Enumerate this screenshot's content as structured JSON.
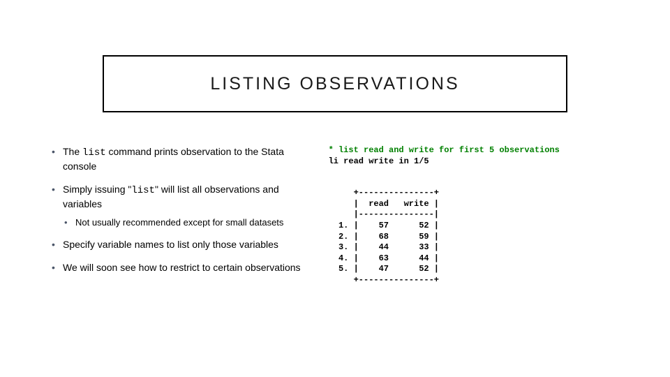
{
  "title": "LISTING OBSERVATIONS",
  "bullets": {
    "b1_pre": "The ",
    "b1_code": "list",
    "b1_post": " command prints observation to the Stata console",
    "b2_pre": "Simply issuing \"",
    "b2_code": "list",
    "b2_post": "\" will list all observations and variables",
    "b2a": "Not usually recommended except for small datasets",
    "b3": "Specify variable names to list only those variables",
    "b4": "We will soon see how to restrict to certain observations"
  },
  "code": {
    "comment": "* list read and write for first 5 observations",
    "command": "li read write in 1/5",
    "output": "     +---------------+\n     |  read   write |\n     |---------------|\n  1. |    57      52 |\n  2. |    68      59 |\n  3. |    44      33 |\n  4. |    63      44 |\n  5. |    47      52 |\n     +---------------+"
  }
}
